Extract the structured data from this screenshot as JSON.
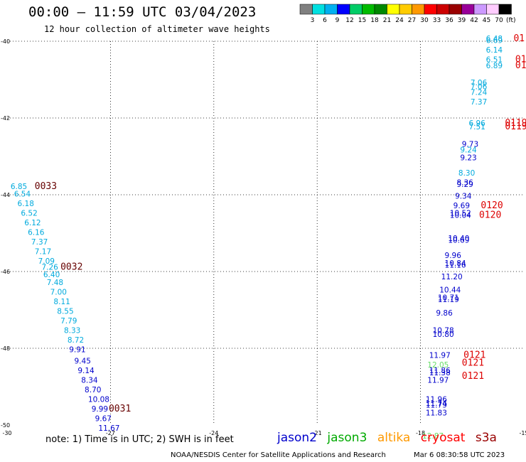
{
  "header": {
    "title": "00:00 – 11:59 UTC 03/04/2023",
    "subtitle": "12 hour collection of altimeter wave heights"
  },
  "colorbar": {
    "labels": [
      "3",
      "6",
      "9",
      "12",
      "15",
      "18",
      "21",
      "24",
      "27",
      "30",
      "33",
      "36",
      "39",
      "42",
      "45",
      "70"
    ],
    "unit": "(ft)",
    "colors": [
      "#808080",
      "#00e0e0",
      "#00b0f0",
      "#0000ff",
      "#00cc66",
      "#00bb00",
      "#008800",
      "#ffff00",
      "#ffcc00",
      "#ff9900",
      "#ff0000",
      "#cc0000",
      "#990000",
      "#990099",
      "#cc99ff",
      "#ffccff",
      "#000000"
    ]
  },
  "chart_data": {
    "type": "scatter",
    "xlim": [
      -30,
      -15
    ],
    "ylim": [
      -50,
      -40
    ],
    "xticks": [
      "-30",
      "-27",
      "-24",
      "-21",
      "-18",
      "-15"
    ],
    "yticks": [
      "-40",
      "-42",
      "-44",
      "-46",
      "-48",
      "-50"
    ],
    "grid": true,
    "series": [
      {
        "name": "cryosat",
        "color": "#00aadd",
        "points": [
          {
            "x": -29.9,
            "y": -43.85,
            "v": "6.85"
          },
          {
            "x": -29.8,
            "y": -44.05,
            "v": "6.54"
          },
          {
            "x": -29.7,
            "y": -44.3,
            "v": "6.18"
          },
          {
            "x": -29.6,
            "y": -44.55,
            "v": "6.52"
          },
          {
            "x": -29.5,
            "y": -44.8,
            "v": "6.12"
          },
          {
            "x": -29.4,
            "y": -45.05,
            "v": "6.16"
          },
          {
            "x": -29.3,
            "y": -45.3,
            "v": "7.37"
          },
          {
            "x": -29.2,
            "y": -45.55,
            "v": "7.17"
          },
          {
            "x": -29.1,
            "y": -45.8,
            "v": "7.09"
          },
          {
            "x": -29.0,
            "y": -45.95,
            "v": "7.26"
          },
          {
            "x": -28.95,
            "y": -46.15,
            "v": "6.40"
          },
          {
            "x": -28.85,
            "y": -46.35,
            "v": "7.48"
          },
          {
            "x": -28.75,
            "y": -46.6,
            "v": "7.00"
          },
          {
            "x": -28.65,
            "y": -46.85,
            "v": "8.11"
          },
          {
            "x": -28.55,
            "y": -47.1,
            "v": "8.55"
          },
          {
            "x": -28.45,
            "y": -47.35,
            "v": "7.79"
          },
          {
            "x": -28.35,
            "y": -47.6,
            "v": "8.33"
          },
          {
            "x": -28.25,
            "y": -47.85,
            "v": "8.72"
          },
          {
            "x": -16.1,
            "y": -40.0,
            "v": "6.48"
          },
          {
            "x": -16.1,
            "y": -40.05,
            "v": "6.69"
          },
          {
            "x": -16.1,
            "y": -40.3,
            "v": "6.14"
          },
          {
            "x": -16.1,
            "y": -40.55,
            "v": "6.51"
          },
          {
            "x": -16.1,
            "y": -40.7,
            "v": "6.89"
          },
          {
            "x": -16.55,
            "y": -41.15,
            "v": "7.06"
          },
          {
            "x": -16.55,
            "y": -41.25,
            "v": "7.06"
          },
          {
            "x": -16.55,
            "y": -41.4,
            "v": "7.24"
          },
          {
            "x": -16.55,
            "y": -41.65,
            "v": "7.37"
          },
          {
            "x": -16.6,
            "y": -42.2,
            "v": "6.96"
          },
          {
            "x": -16.6,
            "y": -42.3,
            "v": "7.51"
          },
          {
            "x": -16.85,
            "y": -42.9,
            "v": "9.24"
          },
          {
            "x": -16.9,
            "y": -43.5,
            "v": "8.30"
          }
        ]
      },
      {
        "name": "jason2",
        "color": "#0000cc",
        "points": [
          {
            "x": -28.2,
            "y": -48.1,
            "v": "9.91"
          },
          {
            "x": -28.05,
            "y": -48.4,
            "v": "9.45"
          },
          {
            "x": -27.95,
            "y": -48.65,
            "v": "9.14"
          },
          {
            "x": -27.85,
            "y": -48.9,
            "v": "8.34"
          },
          {
            "x": -27.75,
            "y": -49.15,
            "v": "8.70"
          },
          {
            "x": -27.65,
            "y": -49.4,
            "v": "10.08"
          },
          {
            "x": -27.55,
            "y": -49.65,
            "v": "9.99"
          },
          {
            "x": -27.45,
            "y": -49.9,
            "v": "9.67"
          },
          {
            "x": -27.35,
            "y": -50.15,
            "v": "11.67"
          },
          {
            "x": -16.8,
            "y": -42.75,
            "v": "9.73"
          },
          {
            "x": -16.85,
            "y": -43.1,
            "v": "9.23"
          },
          {
            "x": -16.95,
            "y": -43.75,
            "v": "8.36"
          },
          {
            "x": -16.95,
            "y": -43.8,
            "v": "9.29"
          },
          {
            "x": -17.0,
            "y": -44.1,
            "v": "9.34"
          },
          {
            "x": -17.05,
            "y": -44.35,
            "v": "9.69"
          },
          {
            "x": -17.15,
            "y": -44.55,
            "v": "10.52"
          },
          {
            "x": -17.15,
            "y": -44.6,
            "v": "10.04"
          },
          {
            "x": -17.2,
            "y": -45.2,
            "v": "10.40"
          },
          {
            "x": -17.2,
            "y": -45.25,
            "v": "10.69"
          },
          {
            "x": -17.3,
            "y": -45.65,
            "v": "9.96"
          },
          {
            "x": -17.3,
            "y": -45.85,
            "v": "10.84"
          },
          {
            "x": -17.3,
            "y": -45.9,
            "v": "11.16"
          },
          {
            "x": -17.4,
            "y": -46.2,
            "v": "11.20"
          },
          {
            "x": -17.45,
            "y": -46.55,
            "v": "10.44"
          },
          {
            "x": -17.5,
            "y": -46.75,
            "v": "10.71"
          },
          {
            "x": -17.5,
            "y": -46.8,
            "v": "11.19"
          },
          {
            "x": -17.55,
            "y": -47.15,
            "v": "9.86"
          },
          {
            "x": -17.65,
            "y": -47.6,
            "v": "10.78"
          },
          {
            "x": -17.65,
            "y": -47.7,
            "v": "10.80"
          },
          {
            "x": -17.75,
            "y": -48.25,
            "v": "11.97"
          },
          {
            "x": -17.75,
            "y": -48.65,
            "v": "11.86"
          },
          {
            "x": -17.75,
            "y": -48.7,
            "v": "11.38"
          },
          {
            "x": -17.8,
            "y": -48.9,
            "v": "11.97"
          },
          {
            "x": -17.85,
            "y": -49.4,
            "v": "11.96"
          },
          {
            "x": -17.85,
            "y": -49.5,
            "v": "11.74"
          },
          {
            "x": -17.85,
            "y": -49.55,
            "v": "11.79"
          },
          {
            "x": -17.85,
            "y": -49.75,
            "v": "11.83"
          }
        ]
      },
      {
        "name": "jason3",
        "color": "#66dd66",
        "points": [
          {
            "x": -17.8,
            "y": -48.5,
            "v": "12.05"
          },
          {
            "x": -17.95,
            "y": -50.35,
            "v": "12.87"
          }
        ]
      }
    ],
    "annotations": [
      {
        "text": "0033",
        "x": -29.2,
        "y": -43.85,
        "color": "#660000"
      },
      {
        "text": "0032",
        "x": -28.45,
        "y": -45.95,
        "color": "#660000"
      },
      {
        "text": "0031",
        "x": -27.05,
        "y": -49.65,
        "color": "#660000"
      },
      {
        "text": "01",
        "x": -15.3,
        "y": -40.0,
        "color": "#dd0000"
      },
      {
        "text": "01",
        "x": -15.25,
        "y": -40.55,
        "color": "#dd0000"
      },
      {
        "text": "01",
        "x": -15.25,
        "y": -40.7,
        "color": "#dd0000"
      },
      {
        "text": "0119",
        "x": -15.55,
        "y": -42.2,
        "color": "#dd0000"
      },
      {
        "text": "0119",
        "x": -15.55,
        "y": -42.3,
        "color": "#dd0000"
      },
      {
        "text": "0120",
        "x": -16.25,
        "y": -44.35,
        "color": "#dd0000"
      },
      {
        "text": "0120",
        "x": -16.3,
        "y": -44.6,
        "color": "#dd0000"
      },
      {
        "text": "0121",
        "x": -16.75,
        "y": -48.25,
        "color": "#dd0000"
      },
      {
        "text": "0121",
        "x": -16.8,
        "y": -48.45,
        "color": "#dd0000"
      },
      {
        "text": "0121",
        "x": -16.8,
        "y": -48.8,
        "color": "#dd0000"
      }
    ]
  },
  "legend": {
    "note": "note: 1) Time is in UTC; 2) SWH is in feet",
    "entries": [
      {
        "label": "jason2",
        "color": "#0000cc"
      },
      {
        "label": "jason3",
        "color": "#00aa00"
      },
      {
        "label": "altika",
        "color": "#ff9900"
      },
      {
        "label": "cryosat",
        "color": "#ff0000"
      },
      {
        "label": "s3a",
        "color": "#990000"
      }
    ]
  },
  "footer": {
    "credit": "NOAA/NESDIS Center for Satellite Applications and Research",
    "timestamp": "Mar  6 08:30:58 UTC 2023"
  }
}
